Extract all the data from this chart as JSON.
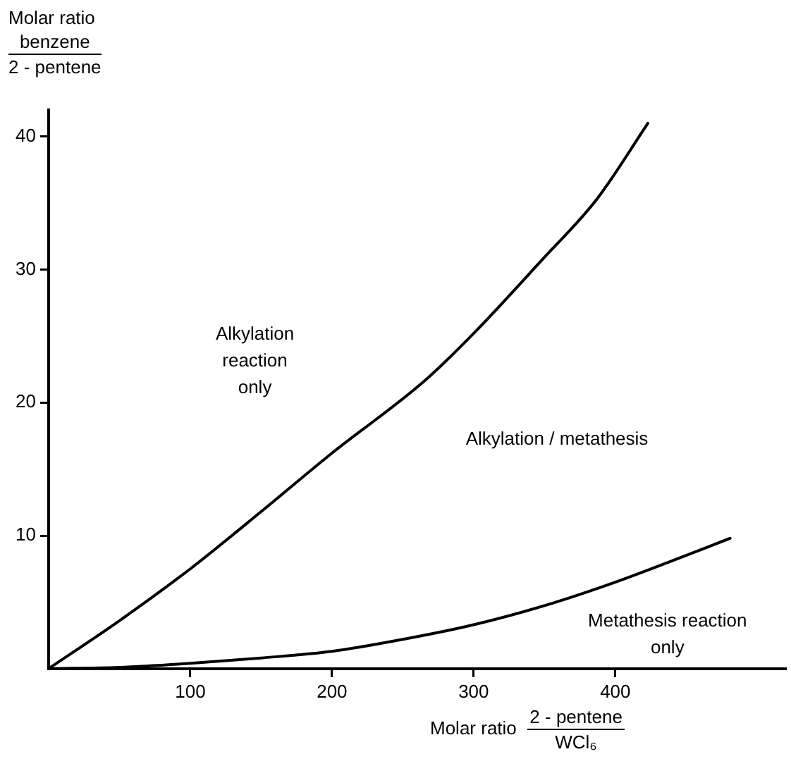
{
  "chart_data": {
    "type": "line",
    "xlabel": "Molar ratio\n2 - pentene\nWCl₆",
    "ylabel": "Molar ratio\nbenzene\n2 - pentene",
    "xlim": [
      0,
      520
    ],
    "xticks": [
      100,
      200,
      300,
      400
    ],
    "ylim": [
      0,
      42
    ],
    "yticks": [
      10,
      20,
      30,
      40
    ],
    "marker": "none",
    "line_style": "solid",
    "legend": false,
    "grid": false,
    "series": [
      {
        "color": "#000000",
        "x": [
          0,
          50,
          100,
          150,
          200,
          265,
          300,
          348,
          387,
          423
        ],
        "values": [
          0,
          3.6,
          7.5,
          11.8,
          16.2,
          21.6,
          25.2,
          30.7,
          35.3,
          41
        ]
      },
      {
        "color": "#000000",
        "x": [
          0,
          50,
          100,
          150,
          200,
          250,
          300,
          355,
          400,
          440,
          481
        ],
        "values": [
          0,
          0.1,
          0.4,
          0.8,
          1.3,
          2.2,
          3.3,
          4.9,
          6.5,
          8.1,
          9.8
        ]
      }
    ],
    "annotations": [
      "Alkylation\nreaction\nonly",
      "Alkylation / metathesis",
      "Metathesis reaction\nonly"
    ]
  }
}
